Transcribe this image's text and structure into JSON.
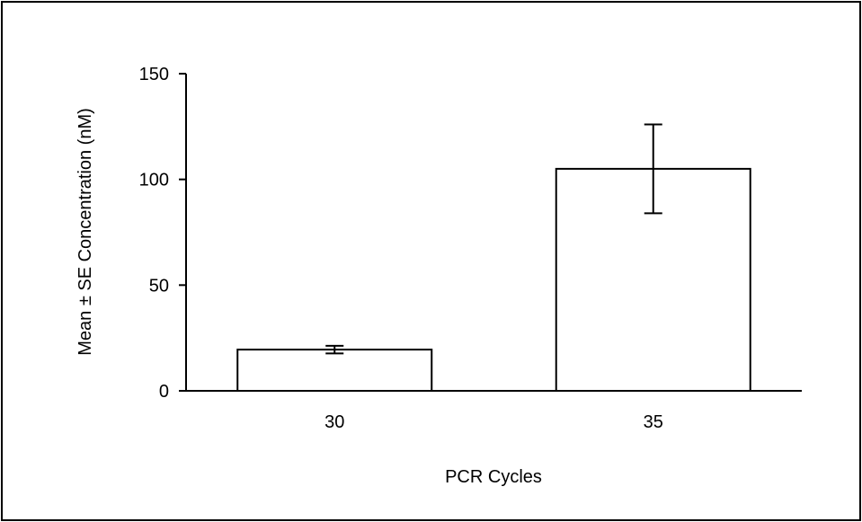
{
  "chart_data": {
    "type": "bar",
    "categories": [
      "30",
      "35"
    ],
    "values": [
      19.5,
      105
    ],
    "errors": [
      1.8,
      21
    ],
    "xlabel": "PCR Cycles",
    "ylabel": "Mean ± SE Concentration (nM)",
    "ylim": [
      0,
      150
    ],
    "yticks": [
      "0",
      "50",
      "100",
      "150"
    ],
    "grid": false,
    "colors": {
      "bar_fill": "#ffffff",
      "stroke": "#000000"
    }
  }
}
